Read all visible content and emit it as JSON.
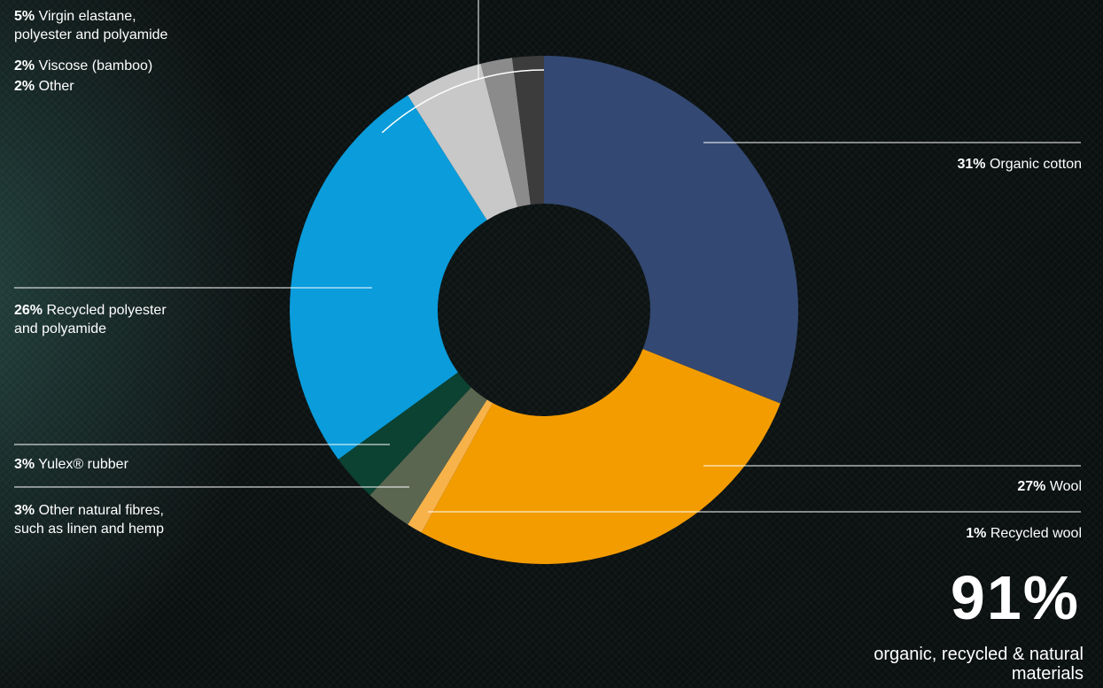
{
  "chart_data": {
    "type": "donut",
    "unit": "%",
    "slices": [
      {
        "label": "Organic cotton",
        "pct_text": "31%",
        "value": 31,
        "color": "#334872"
      },
      {
        "label": "Wool",
        "pct_text": "27%",
        "value": 27,
        "color": "#f39c00"
      },
      {
        "label": "Recycled wool",
        "pct_text": "1%",
        "value": 1,
        "color": "#f8b24a"
      },
      {
        "label": "Other natural fibres, such as linen and hemp",
        "pct_text": "3%",
        "value": 3,
        "color": "#5a6650"
      },
      {
        "label": "Yulex® rubber",
        "pct_text": "3%",
        "value": 3,
        "color": "#0b4232"
      },
      {
        "label": "Recycled polyester and polyamide",
        "pct_text": "26%",
        "value": 26,
        "color": "#0a9cdb"
      },
      {
        "label": "Virgin elastane, polyester and polyamide",
        "pct_text": "5%",
        "value": 5,
        "color": "#c8c8c8"
      },
      {
        "label": "Viscose (bamboo)",
        "pct_text": "2%",
        "value": 2,
        "color": "#8b8b8b"
      },
      {
        "label": "Other",
        "pct_text": "2%",
        "value": 2,
        "color": "#3c3c3c"
      }
    ],
    "summary": {
      "value": "91%",
      "caption": "organic, recycled & natural materials"
    }
  },
  "labels": {
    "virgin": {
      "pct": "5%",
      "line1": " Virgin elastane,",
      "line2": "polyester and polyamide"
    },
    "viscose": {
      "pct": "2%",
      "text": " Viscose (bamboo)"
    },
    "other": {
      "pct": "2%",
      "text": " Other"
    },
    "cotton": {
      "pct": "31%",
      "text": " Organic cotton"
    },
    "recycled_poly": {
      "pct": "26%",
      "line1": " Recycled polyester",
      "line2": "and polyamide"
    },
    "yulex": {
      "pct": "3%",
      "text": " Yulex® rubber"
    },
    "natural": {
      "pct": "3%",
      "line1": " Other natural fibres,",
      "line2": "such as linen and hemp"
    },
    "wool": {
      "pct": "27%",
      "text": " Wool"
    },
    "recycled_wool": {
      "pct": "1%",
      "text": " Recycled wool"
    }
  }
}
